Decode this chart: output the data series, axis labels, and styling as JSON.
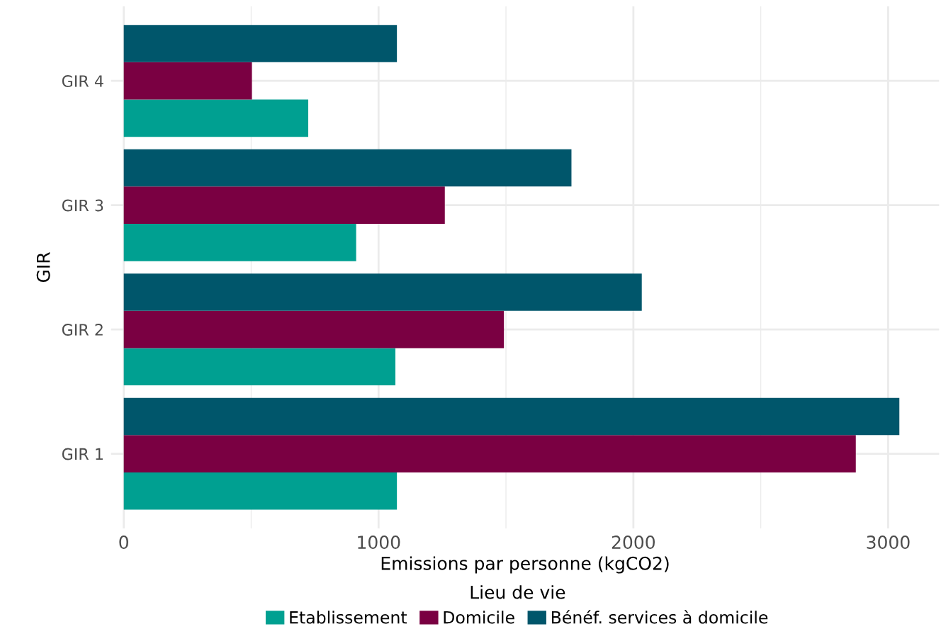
{
  "chart_data": {
    "type": "bar",
    "orientation": "horizontal",
    "xlabel": "Emissions par personne (kgCO2)",
    "ylabel": "GIR",
    "legend_title": "Lieu de vie",
    "legend": "bottom",
    "grid": true,
    "categories": [
      "GIR 4",
      "GIR 3",
      "GIR 2",
      "GIR 1"
    ],
    "series": [
      {
        "name": "Etablissement",
        "color": "#00a091",
        "values": [
          724,
          912,
          1066,
          1072
        ]
      },
      {
        "name": "Domicile",
        "color": "#7a0042",
        "values": [
          503,
          1260,
          1492,
          2873
        ]
      },
      {
        "name": "Bénéf. services à domicile",
        "color": "#00566b",
        "values": [
          1072,
          1757,
          2033,
          3044
        ]
      }
    ],
    "xlim": [
      -50,
      3200
    ],
    "xticks": [
      0,
      {
        "value": 500,
        "label": null
      },
      1000,
      {
        "value": 1500,
        "label": null
      },
      2000,
      {
        "value": 2500,
        "label": null
      },
      3000
    ]
  }
}
